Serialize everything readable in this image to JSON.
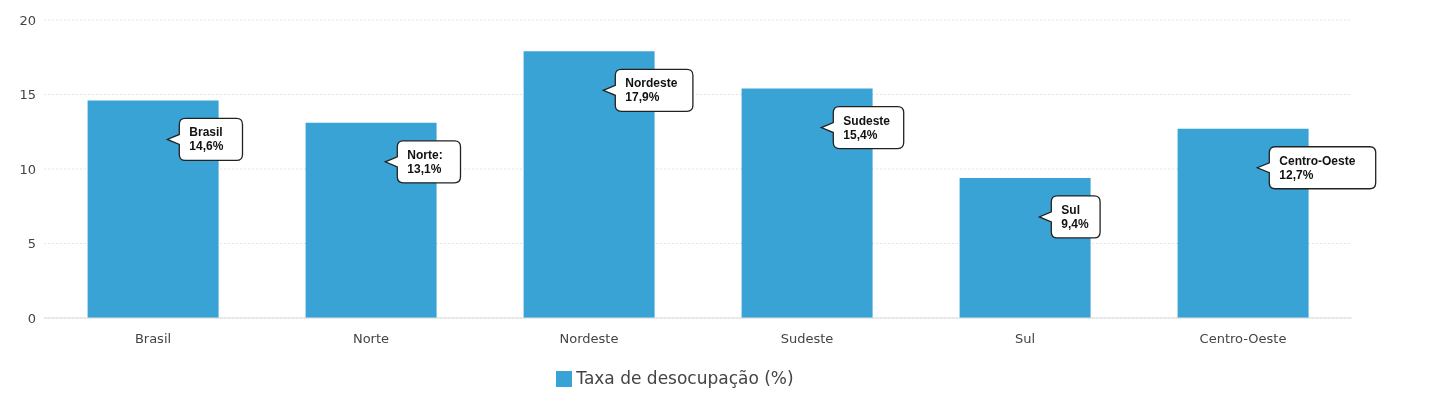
{
  "chart_data": {
    "type": "bar",
    "categories": [
      "Brasil",
      "Norte",
      "Nordeste",
      "Sudeste",
      "Sul",
      "Centro-Oeste"
    ],
    "series": [
      {
        "name": "Taxa de desocupação (%)",
        "color": "#3aa3d6",
        "values": [
          14.6,
          13.1,
          17.9,
          15.4,
          9.4,
          12.7
        ],
        "value_labels": [
          "Brasil\n14,6%",
          "Norte:\n13,1%",
          "Nordeste\n17,9%",
          "Sudeste\n15,4%",
          "Sul\n9,4%",
          "Centro-Oeste\n12,7%"
        ]
      }
    ],
    "ylim": [
      0,
      20
    ],
    "yticks": [
      0,
      5,
      10,
      15,
      20
    ],
    "grid": "y",
    "legend": "bottom"
  }
}
